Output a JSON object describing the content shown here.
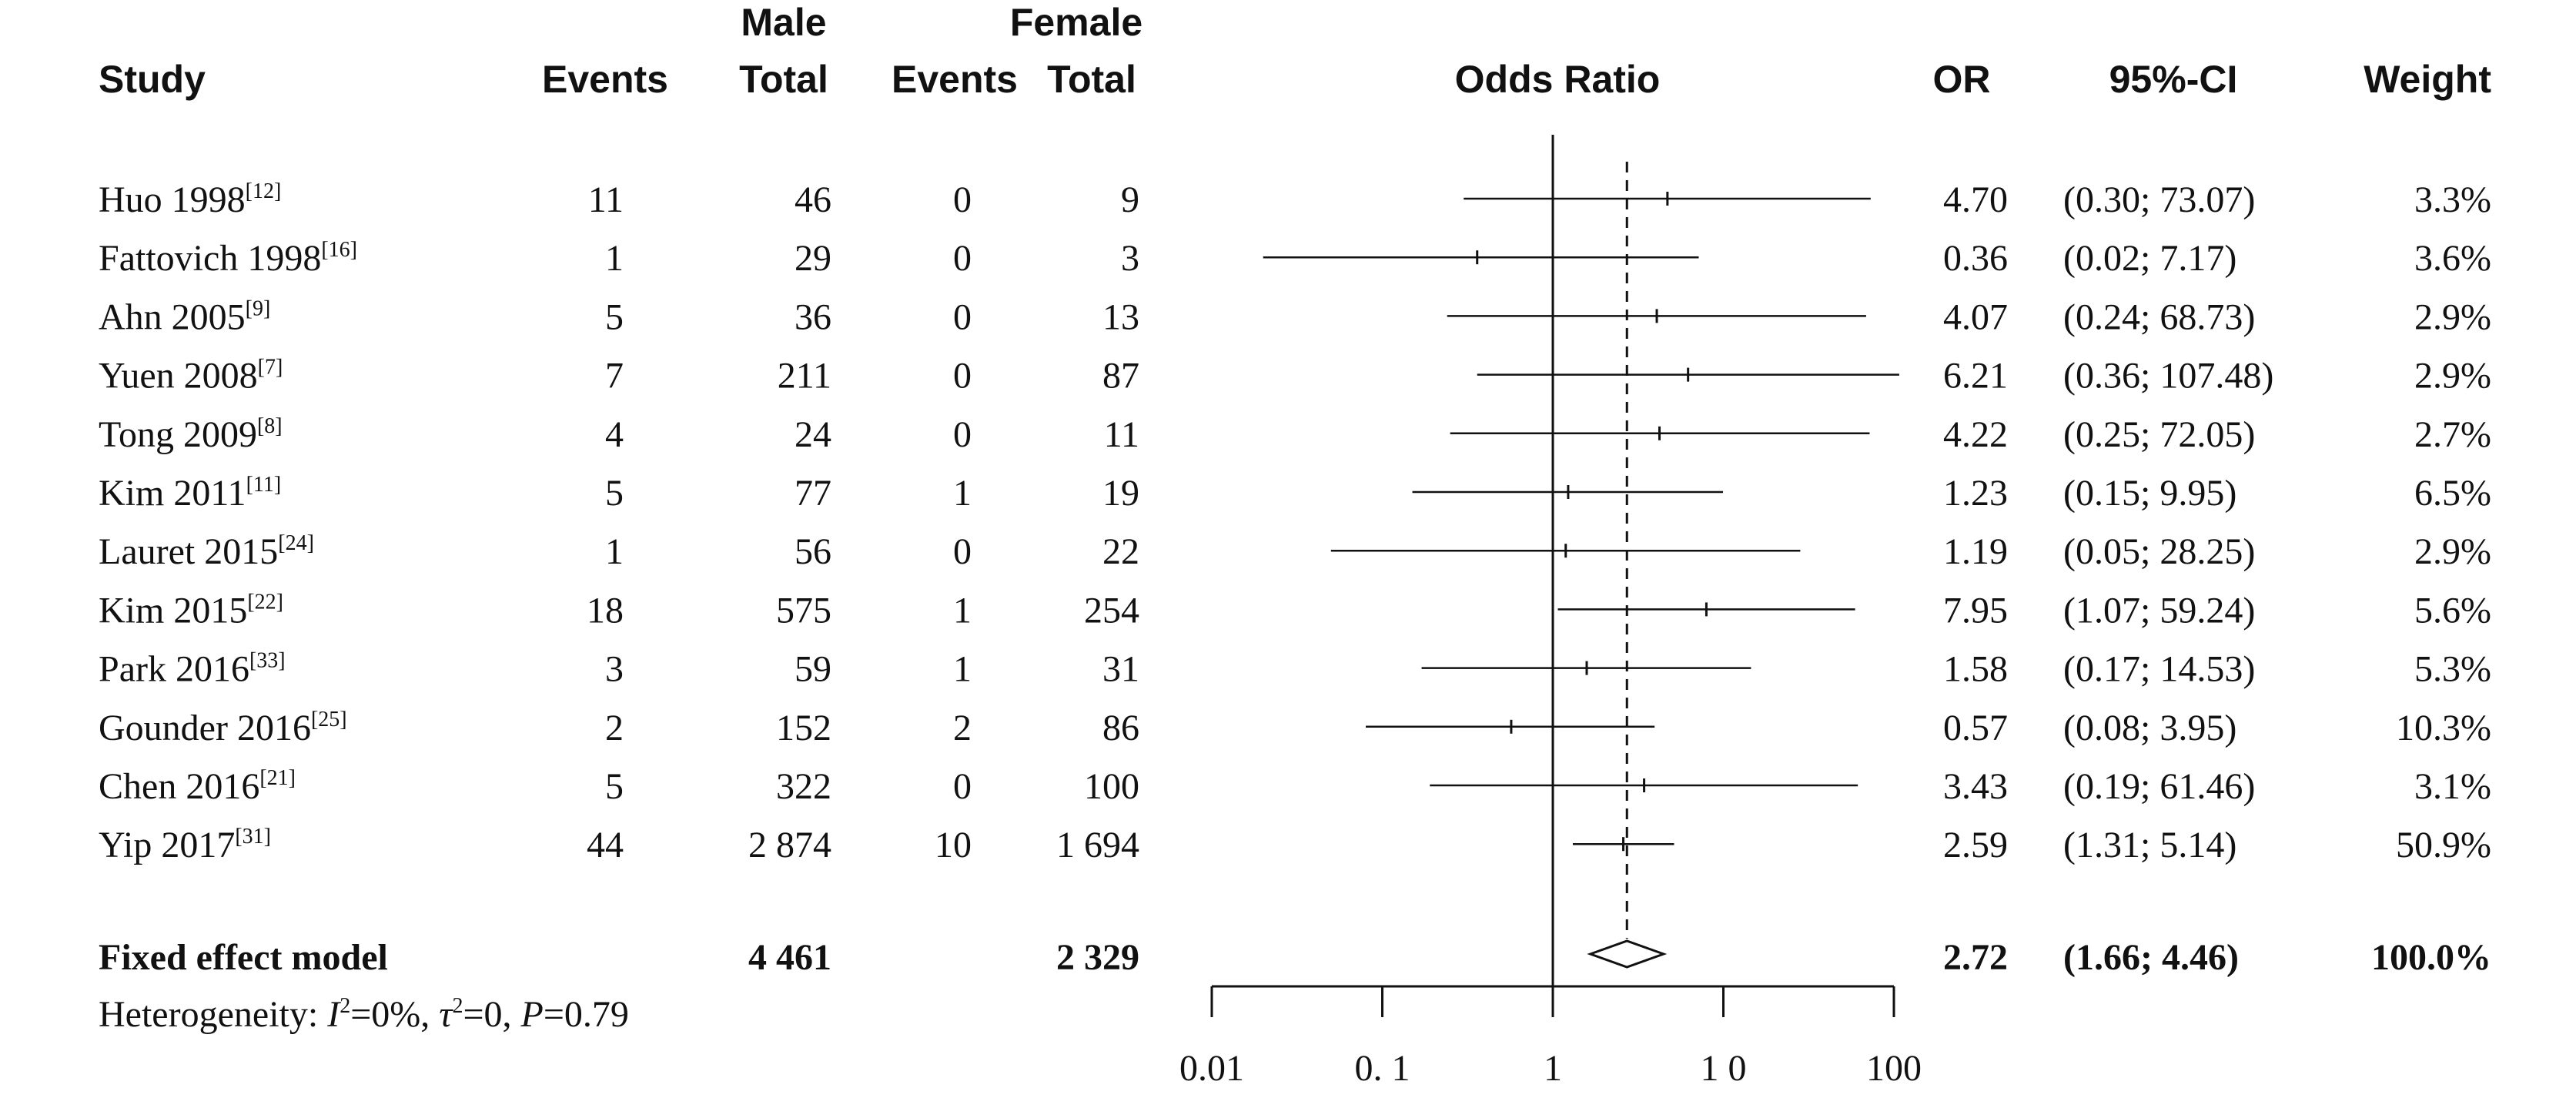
{
  "headers": {
    "study": "Study",
    "male_group": "Male",
    "female_group": "Female",
    "events": "Events",
    "total": "Total",
    "odds_ratio": "Odds Ratio",
    "or": "OR",
    "ci": "95%-CI",
    "weight": "Weight"
  },
  "studies": [
    {
      "name": "Huo 1998",
      "ref": "[12]",
      "m_events": "11",
      "m_total": "46",
      "f_events": "0",
      "f_total": "9",
      "or": "4.70",
      "ci": "(0.30; 73.07)",
      "weight": "3.3%"
    },
    {
      "name": "Fattovich 1998",
      "ref": "[16]",
      "m_events": "1",
      "m_total": "29",
      "f_events": "0",
      "f_total": "3",
      "or": "0.36",
      "ci": "(0.02; 7.17)",
      "weight": "3.6%"
    },
    {
      "name": "Ahn 2005",
      "ref": "[9]",
      "m_events": "5",
      "m_total": "36",
      "f_events": "0",
      "f_total": "13",
      "or": "4.07",
      "ci": "(0.24; 68.73)",
      "weight": "2.9%"
    },
    {
      "name": "Yuen 2008",
      "ref": "[7]",
      "m_events": "7",
      "m_total": "211",
      "f_events": "0",
      "f_total": "87",
      "or": "6.21",
      "ci": "(0.36; 107.48)",
      "weight": "2.9%"
    },
    {
      "name": "Tong 2009",
      "ref": "[8]",
      "m_events": "4",
      "m_total": "24",
      "f_events": "0",
      "f_total": "11",
      "or": "4.22",
      "ci": "(0.25; 72.05)",
      "weight": "2.7%"
    },
    {
      "name": "Kim 2011",
      "ref": "[11]",
      "m_events": "5",
      "m_total": "77",
      "f_events": "1",
      "f_total": "19",
      "or": "1.23",
      "ci": "(0.15; 9.95)",
      "weight": "6.5%"
    },
    {
      "name": "Lauret 2015",
      "ref": "[24]",
      "m_events": "1",
      "m_total": "56",
      "f_events": "0",
      "f_total": "22",
      "or": "1.19",
      "ci": "(0.05; 28.25)",
      "weight": "2.9%"
    },
    {
      "name": "Kim 2015",
      "ref": "[22]",
      "m_events": "18",
      "m_total": "575",
      "f_events": "1",
      "f_total": "254",
      "or": "7.95",
      "ci": "(1.07; 59.24)",
      "weight": "5.6%"
    },
    {
      "name": "Park 2016",
      "ref": "[33]",
      "m_events": "3",
      "m_total": "59",
      "f_events": "1",
      "f_total": "31",
      "or": "1.58",
      "ci": "(0.17; 14.53)",
      "weight": "5.3%"
    },
    {
      "name": "Gounder 2016",
      "ref": "[25]",
      "m_events": "2",
      "m_total": "152",
      "f_events": "2",
      "f_total": "86",
      "or": "0.57",
      "ci": "(0.08; 3.95)",
      "weight": "10.3%"
    },
    {
      "name": "Chen 2016",
      "ref": "[21]",
      "m_events": "5",
      "m_total": "322",
      "f_events": "0",
      "f_total": "100",
      "or": "3.43",
      "ci": "(0.19; 61.46)",
      "weight": "3.1%"
    },
    {
      "name": "Yip 2017",
      "ref": "[31]",
      "m_events": "44",
      "m_total": "2 874",
      "f_events": "10",
      "f_total": "1 694",
      "or": "2.59",
      "ci": "(1.31; 5.14)",
      "weight": "50.9%"
    }
  ],
  "summary": {
    "label": "Fixed effect model",
    "m_total": "4 461",
    "f_total": "2 329",
    "or": "2.72",
    "ci": "(1.66; 4.46)",
    "weight": "100.0%"
  },
  "heterogeneity": {
    "prefix": "Heterogeneity: ",
    "i2_symbol": "I",
    "i2_rest": "=0%, ",
    "tau_symbol": "τ",
    "tau_rest": "=0, ",
    "p_symbol": "P",
    "p_rest": "=0.79"
  },
  "chart_data": {
    "type": "forest",
    "scale": "log",
    "xlim": [
      0.01,
      100
    ],
    "ticks": [
      0.01,
      0.1,
      1,
      10,
      100
    ],
    "tick_labels": [
      "0.01",
      "0. 1",
      "1",
      "1 0",
      "100"
    ],
    "reference_line": 1,
    "pooled_line": 2.72,
    "points": [
      {
        "or": 4.7,
        "lo": 0.3,
        "hi": 73.07
      },
      {
        "or": 0.36,
        "lo": 0.02,
        "hi": 7.17
      },
      {
        "or": 4.07,
        "lo": 0.24,
        "hi": 68.73
      },
      {
        "or": 6.21,
        "lo": 0.36,
        "hi": 107.48
      },
      {
        "or": 4.22,
        "lo": 0.25,
        "hi": 72.05
      },
      {
        "or": 1.23,
        "lo": 0.15,
        "hi": 9.95
      },
      {
        "or": 1.19,
        "lo": 0.05,
        "hi": 28.25
      },
      {
        "or": 7.95,
        "lo": 1.07,
        "hi": 59.24
      },
      {
        "or": 1.58,
        "lo": 0.17,
        "hi": 14.53
      },
      {
        "or": 0.57,
        "lo": 0.08,
        "hi": 3.95
      },
      {
        "or": 3.43,
        "lo": 0.19,
        "hi": 61.46
      },
      {
        "or": 2.59,
        "lo": 1.31,
        "hi": 5.14
      }
    ],
    "diamond": {
      "or": 2.72,
      "lo": 1.66,
      "hi": 4.46
    }
  }
}
